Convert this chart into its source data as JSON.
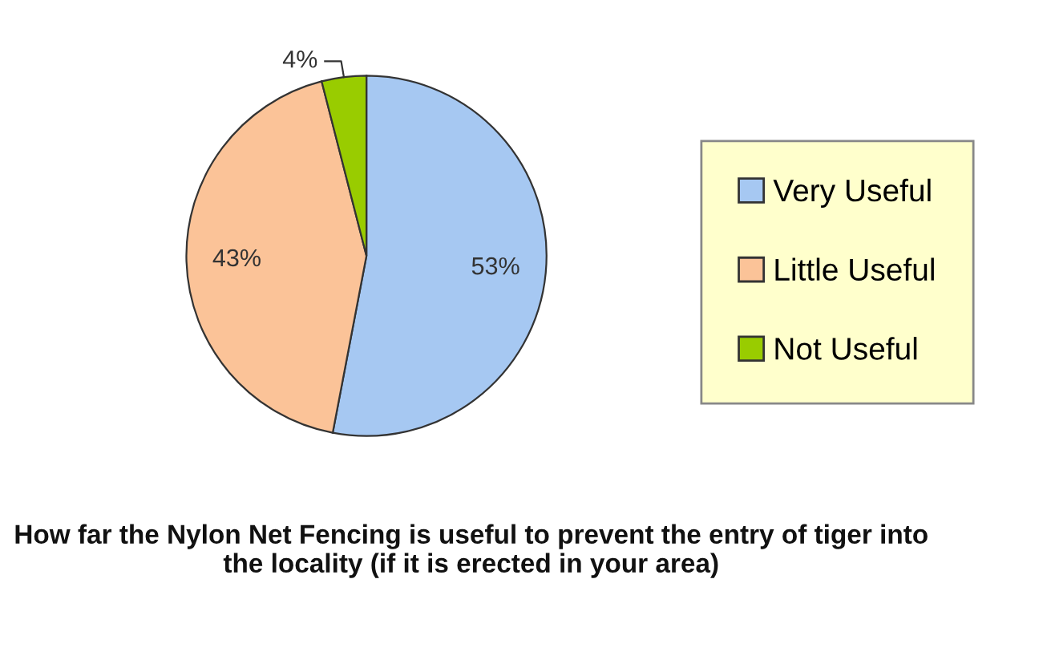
{
  "chart_data": {
    "type": "pie",
    "title": "How far the Nylon Net Fencing is useful to prevent the entry of tiger into the locality (if it is erected in your area)",
    "categories": [
      "Very Useful",
      "Little Useful",
      "Not Useful"
    ],
    "values": [
      53,
      43,
      4
    ],
    "colors": [
      "#a6c8f2",
      "#fbc398",
      "#99cc00"
    ],
    "value_labels": [
      "53%",
      "43%",
      "4%"
    ],
    "legend": "right"
  }
}
